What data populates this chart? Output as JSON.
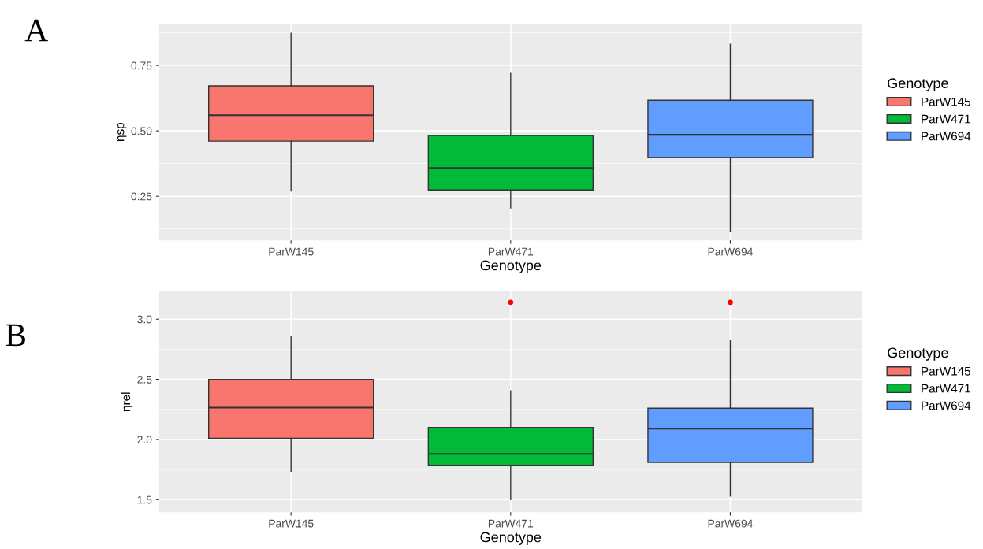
{
  "chart_data": [
    {
      "type": "box",
      "title": "A",
      "xlabel": "Genotype",
      "ylabel": "ηsp",
      "categories": [
        "ParW145",
        "ParW471",
        "ParW694"
      ],
      "ylim": [
        0.081,
        0.91
      ],
      "yticks": [
        {
          "value": 0.25,
          "label": "0.25"
        },
        {
          "value": 0.5,
          "label": "0.50"
        },
        {
          "value": 0.75,
          "label": "0.75"
        }
      ],
      "grid": true,
      "legend": "right",
      "legend_title": "Genotype",
      "series": [
        {
          "name": "ParW145",
          "color": "#f8766d",
          "boxes": [
            {
              "low": 0.27,
              "q1": 0.461,
              "median": 0.56,
              "q3": 0.672,
              "high": 0.873
            },
            null,
            null
          ]
        },
        {
          "name": "ParW471",
          "color": "#00ba38",
          "boxes": [
            null,
            {
              "low": 0.205,
              "q1": 0.274,
              "median": 0.358,
              "q3": 0.482,
              "high": 0.72
            },
            null
          ]
        },
        {
          "name": "ParW694",
          "color": "#619cff",
          "boxes": [
            null,
            null,
            {
              "low": 0.117,
              "q1": 0.398,
              "median": 0.485,
              "q3": 0.617,
              "high": 0.831
            }
          ]
        }
      ]
    },
    {
      "type": "box",
      "title": "B",
      "xlabel": "Genotype",
      "ylabel": "ηrel",
      "categories": [
        "ParW145",
        "ParW471",
        "ParW694"
      ],
      "ylim": [
        1.395,
        3.23
      ],
      "yticks": [
        {
          "value": 1.5,
          "label": "1.5"
        },
        {
          "value": 2.0,
          "label": "2.0"
        },
        {
          "value": 2.5,
          "label": "2.5"
        },
        {
          "value": 3.0,
          "label": "3.0"
        }
      ],
      "grid": true,
      "legend": "right",
      "legend_title": "Genotype",
      "series": [
        {
          "name": "ParW145",
          "color": "#f8766d",
          "boxes": [
            {
              "low": 1.736,
              "q1": 2.01,
              "median": 2.265,
              "q3": 2.5,
              "high": 2.856
            },
            null,
            null
          ]
        },
        {
          "name": "ParW471",
          "color": "#00ba38",
          "boxes": [
            null,
            {
              "low": 1.5,
              "q1": 1.785,
              "median": 1.88,
              "q3": 2.1,
              "high": 2.404,
              "outliers": [
                3.14
              ]
            },
            null
          ]
        },
        {
          "name": "ParW694",
          "color": "#619cff",
          "boxes": [
            null,
            null,
            {
              "low": 1.53,
              "q1": 1.81,
              "median": 2.09,
              "q3": 2.26,
              "high": 2.82,
              "outliers": [
                3.14
              ]
            }
          ]
        }
      ]
    }
  ]
}
